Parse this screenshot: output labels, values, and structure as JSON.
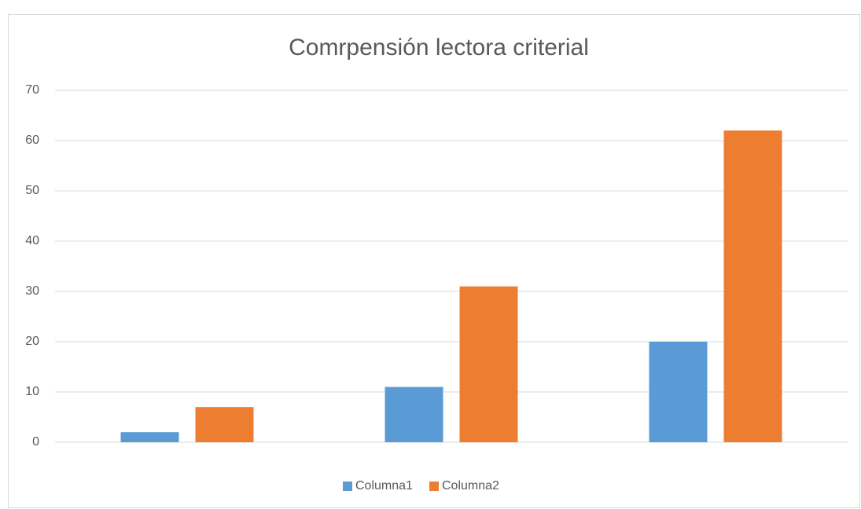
{
  "chart_data": {
    "type": "bar",
    "title": "Comrpensión lectora criterial",
    "categories": [
      null,
      null,
      null
    ],
    "series": [
      {
        "name": "Columna1",
        "color": "#5b9bd5",
        "values": [
          2,
          11,
          20
        ]
      },
      {
        "name": "Columna2",
        "color": "#ed7d31",
        "values": [
          7,
          31,
          62
        ]
      }
    ],
    "ylim": [
      0,
      70
    ],
    "yticks": [
      0,
      10,
      20,
      30,
      40,
      50,
      60,
      70
    ],
    "grid": true,
    "legend": "bottom"
  }
}
